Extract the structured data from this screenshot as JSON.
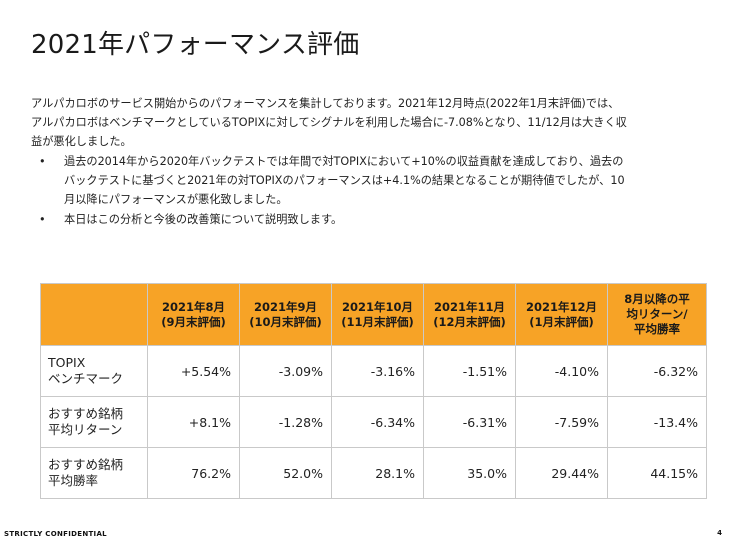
{
  "title": "2021年パフォーマンス評価",
  "intro": {
    "line1": "アルパカロボのサービス開始からのパフォーマンスを集計しております。2021年12月時点(2022年1月末評価)では、",
    "line2": "アルパカロボはベンチマークとしているTOPIXに対してシグナルを利用した場合に-7.08%となり、11/12月は大きく収",
    "line3": "益が悪化しました。"
  },
  "bullets": [
    {
      "dot": "•",
      "line1": "過去の2014年から2020年バックテストでは年間で対TOPIXにおいて+10%の収益貢献を達成しており、過去の",
      "line2": "バックテストに基づくと2021年の対TOPIXのパフォーマンスは+4.1%の結果となることが期待値でしたが、10",
      "line3": "月以降にパフォーマンスが悪化致しました。"
    },
    {
      "dot": "•",
      "line1": "本日はこの分析と今後の改善策について説明致します。"
    }
  ],
  "table": {
    "header_color": "#f7a326",
    "headers": [
      {
        "l1": "",
        "l2": "",
        "l3": ""
      },
      {
        "l1": "2021年8月",
        "l2": "(9月末評価)",
        "l3": ""
      },
      {
        "l1": "2021年9月",
        "l2": "(10月末評価)",
        "l3": ""
      },
      {
        "l1": "2021年10月",
        "l2": "(11月末評価)",
        "l3": ""
      },
      {
        "l1": "2021年11月",
        "l2": "(12月末評価)",
        "l3": ""
      },
      {
        "l1": "2021年12月",
        "l2": "(1月末評価)",
        "l3": ""
      },
      {
        "l1": "8月以降の平",
        "l2": "均リターン/",
        "l3": "平均勝率"
      }
    ],
    "rows": [
      {
        "label1": "TOPIX",
        "label2": "ベンチマーク",
        "values": [
          "+5.54%",
          "-3.09%",
          "-3.16%",
          "-1.51%",
          "-4.10%",
          "-6.32%"
        ]
      },
      {
        "label1": "おすすめ銘柄",
        "label2": "平均リターン",
        "values": [
          "+8.1%",
          "-1.28%",
          "-6.34%",
          "-6.31%",
          "-7.59%",
          "-13.4%"
        ]
      },
      {
        "label1": "おすすめ銘柄",
        "label2": "平均勝率",
        "values": [
          "76.2%",
          "52.0%",
          "28.1%",
          "35.0%",
          "29.44%",
          "44.15%"
        ]
      }
    ]
  },
  "footer": {
    "confidential": "STRICTLY CONFIDENTIAL",
    "page_number": "4"
  }
}
